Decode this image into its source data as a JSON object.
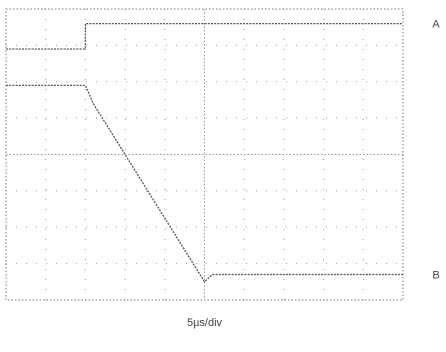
{
  "chart_data": {
    "type": "line",
    "title": "",
    "xlabel": "5µs/div",
    "ylabel": "",
    "grid": true,
    "x_divisions": 10,
    "y_divisions": 8,
    "xlim": [
      0,
      10
    ],
    "ylim": [
      0,
      8
    ],
    "series": [
      {
        "name": "A",
        "x": [
          0,
          2,
          2,
          10
        ],
        "y": [
          6.9,
          6.9,
          7.6,
          7.6
        ]
      },
      {
        "name": "B",
        "x": [
          0,
          2,
          2.2,
          5,
          5.2,
          10
        ],
        "y": [
          5.9,
          5.9,
          5.4,
          0.5,
          0.7,
          0.7
        ]
      }
    ],
    "colors": {
      "trace": "#555555",
      "grid": "#999999",
      "frame": "#777777"
    }
  }
}
